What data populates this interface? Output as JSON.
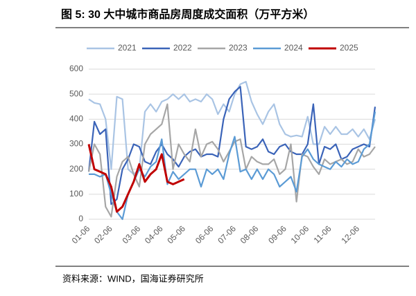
{
  "chart_data": {
    "type": "line",
    "title": "图 5:  30 大中城市商品房周度成交面积（万平方米）",
    "source": "资料来源：WIND，国海证券研究所",
    "categories": [
      "01-06",
      null,
      null,
      null,
      "02-06",
      null,
      null,
      null,
      null,
      "03-06",
      null,
      null,
      null,
      "04-06",
      null,
      null,
      null,
      "05-06",
      null,
      null,
      null,
      null,
      "06-06",
      null,
      null,
      null,
      "07-06",
      null,
      null,
      null,
      "08-06",
      null,
      null,
      null,
      null,
      "09-06",
      null,
      null,
      null,
      "10-06",
      null,
      null,
      null,
      "11-06",
      null,
      null,
      null,
      null,
      "12-06",
      null,
      null,
      null
    ],
    "series": [
      {
        "name": "2021",
        "color": "#a9c4e4",
        "values": [
          480,
          465,
          460,
          400,
          200,
          490,
          480,
          200,
          180,
          200,
          430,
          460,
          430,
          470,
          480,
          500,
          480,
          500,
          470,
          480,
          470,
          500,
          480,
          420,
          460,
          430,
          500,
          540,
          550,
          470,
          420,
          380,
          430,
          460,
          380,
          340,
          330,
          335,
          330,
          410,
          300,
          300,
          370,
          340,
          370,
          340,
          340,
          360,
          330,
          360,
          320,
          400
        ]
      },
      {
        "name": "2022",
        "color": "#3a63b8",
        "values": [
          190,
          390,
          340,
          360,
          60,
          80,
          200,
          240,
          300,
          290,
          230,
          220,
          270,
          300,
          260,
          240,
          210,
          250,
          270,
          280,
          250,
          260,
          260,
          250,
          400,
          480,
          510,
          530,
          290,
          280,
          290,
          320,
          270,
          260,
          290,
          300,
          270,
          260,
          260,
          300,
          460,
          220,
          290,
          280,
          300,
          240,
          250,
          280,
          290,
          300,
          290,
          450
        ]
      },
      {
        "name": "2023",
        "color": "#a6a6a6",
        "values": [
          190,
          300,
          260,
          50,
          10,
          170,
          230,
          250,
          180,
          130,
          300,
          340,
          360,
          380,
          460,
          200,
          300,
          260,
          230,
          360,
          250,
          300,
          310,
          280,
          230,
          270,
          310,
          320,
          200,
          250,
          230,
          220,
          220,
          240,
          180,
          200,
          300,
          70,
          260,
          250,
          210,
          180,
          240,
          220,
          230,
          240,
          220,
          230,
          280,
          250,
          260,
          290
        ]
      },
      {
        "name": "2024",
        "color": "#5b9bd5",
        "values": [
          180,
          180,
          170,
          180,
          100,
          30,
          0,
          100,
          150,
          200,
          170,
          210,
          230,
          320,
          140,
          190,
          160,
          180,
          200,
          200,
          130,
          200,
          180,
          200,
          160,
          260,
          330,
          190,
          200,
          160,
          200,
          160,
          200,
          180,
          130,
          150,
          170,
          110,
          250,
          280,
          240,
          220,
          210,
          200,
          230,
          210,
          240,
          220,
          230,
          280,
          300,
          430
        ]
      },
      {
        "name": "2025",
        "color": "#c00000",
        "values": [
          300,
          200,
          190,
          180,
          130,
          30,
          50,
          100,
          150,
          220,
          150,
          180,
          200,
          260,
          150,
          140,
          150,
          160,
          null,
          null,
          null,
          null,
          null,
          null,
          null,
          null,
          null,
          null,
          null,
          null,
          null,
          null,
          null,
          null,
          null,
          null,
          null,
          null,
          null,
          null,
          null,
          null,
          null,
          null,
          null,
          null,
          null,
          null,
          null,
          null,
          null,
          null
        ]
      }
    ],
    "ylim": [
      0,
      600
    ],
    "yticks": [
      0,
      100,
      200,
      300,
      400,
      500,
      600
    ],
    "grid": true,
    "legend": "top"
  }
}
